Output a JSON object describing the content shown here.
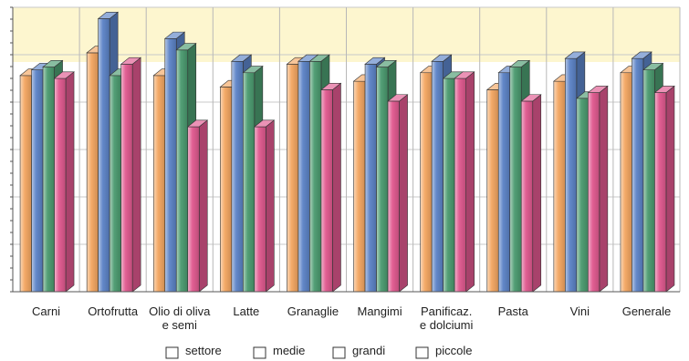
{
  "chart_data": {
    "type": "bar",
    "title": "",
    "xlabel": "",
    "ylabel": "",
    "ylim": [
      0,
      100
    ],
    "grid": true,
    "legend_position": "bottom",
    "categories": [
      [
        "Carni"
      ],
      [
        "Ortofrutta"
      ],
      [
        "Olio di oliva",
        "e semi"
      ],
      [
        "Latte"
      ],
      [
        "Granaglie"
      ],
      [
        "Mangimi"
      ],
      [
        "Panificaz.",
        "e dolciumi"
      ],
      [
        "Pasta"
      ],
      [
        "Vini"
      ],
      [
        "Generale"
      ]
    ],
    "series": [
      {
        "name": "settore",
        "color": "#f3a660",
        "values": [
          76,
          84,
          76,
          72,
          80,
          74,
          77,
          71,
          74,
          77
        ]
      },
      {
        "name": "medie",
        "color": "#5b82c6",
        "values": [
          78,
          96,
          89,
          81,
          81,
          80,
          81,
          77,
          82,
          82
        ]
      },
      {
        "name": "grandi",
        "color": "#4a9a6f",
        "values": [
          79,
          76,
          85,
          77,
          81,
          79,
          75,
          79,
          68,
          78
        ]
      },
      {
        "name": "piccole",
        "color": "#e0588e",
        "values": [
          75,
          80,
          58,
          58,
          71,
          67,
          75,
          67,
          70,
          70
        ]
      }
    ]
  }
}
